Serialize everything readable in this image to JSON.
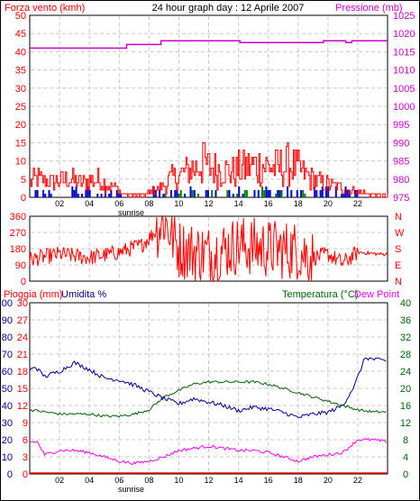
{
  "header": {
    "left_label": "Forza vento (kmh)",
    "center_label": "24 hour graph day : 12 Aprile 2007",
    "right_label": "Pressione (mb)"
  },
  "colors": {
    "wind": "#ff0000",
    "gust_overlay_blue": "#0000cc",
    "gust_overlay_green": "#008000",
    "pressure": "#cc00cc",
    "direction": "#ff0000",
    "humidity": "#000099",
    "temperature": "#006600",
    "dewpoint": "#ff00ff",
    "rain": "#ff0000",
    "grid": "#c8c8c8",
    "frame": "#000000"
  },
  "x_axis": {
    "range": [
      0,
      24
    ],
    "tick_labels": [
      "02",
      "04",
      "06",
      "08",
      "10",
      "12",
      "14",
      "16",
      "18",
      "20",
      "22"
    ],
    "tick_values": [
      2,
      4,
      6,
      8,
      10,
      12,
      14,
      16,
      18,
      20,
      22
    ],
    "sunrise_label": "sunrise",
    "sunrise_hour": 6.8
  },
  "chart_data": [
    {
      "type": "line",
      "name_panel": "wind-pressure",
      "ylabel_left": "Forza vento (kmh)",
      "ylabel_right": "Pressione (mb)",
      "y_left_range": [
        0,
        50
      ],
      "y_left_ticks": [
        0,
        5,
        10,
        15,
        20,
        25,
        30,
        35,
        40,
        45,
        50
      ],
      "y_right_range": [
        975,
        1025
      ],
      "y_right_ticks": [
        975,
        980,
        985,
        990,
        995,
        1000,
        1005,
        1010,
        1015,
        1020,
        1025
      ],
      "pressure_series": {
        "x": [
          0,
          6.5,
          6.5,
          8.8,
          8.8,
          14.1,
          14.1,
          19.7,
          19.7,
          21.2,
          21.2,
          21.6,
          21.6,
          24
        ],
        "y": [
          1016,
          1016,
          1017,
          1017,
          1018,
          1018,
          1017.5,
          1017.5,
          1018,
          1018,
          1017.5,
          1017.5,
          1018,
          1018
        ]
      },
      "wind_profile": {
        "x": [
          0,
          0.5,
          1.5,
          2.5,
          3.5,
          4.5,
          5.5,
          6.5,
          7.5,
          8.5,
          9.5,
          10.5,
          11.5,
          12.5,
          13.5,
          14.5,
          15.5,
          16.5,
          17.5,
          18.5,
          19.5,
          20.5,
          21.5,
          22.5,
          23.5
        ],
        "y": [
          4,
          5,
          4,
          5,
          4,
          5,
          3,
          0.5,
          0.5,
          2,
          5,
          7,
          9,
          8,
          7,
          8,
          9,
          8,
          9,
          6,
          4,
          3,
          2,
          1,
          0.5
        ]
      },
      "wind_peak": {
        "x": 11.6,
        "y": 15
      }
    },
    {
      "type": "line",
      "name_panel": "wind-direction",
      "y_range": [
        0,
        360
      ],
      "y_ticks": [
        0,
        90,
        180,
        270,
        360
      ],
      "right_labels": [
        "N",
        "W",
        "S",
        "E",
        "N"
      ],
      "direction_profile": {
        "x": [
          0,
          2,
          4,
          6,
          7.5,
          8.5,
          9,
          10,
          12,
          14,
          16,
          18,
          19,
          20,
          21,
          22,
          23.5
        ],
        "y": [
          120,
          150,
          130,
          160,
          200,
          280,
          340,
          180,
          150,
          200,
          180,
          170,
          130,
          150,
          100,
          160,
          150
        ]
      }
    },
    {
      "type": "line",
      "name_panel": "temp-hum",
      "legend": [
        "Pioggia (mm)",
        "Umidita %",
        "Temperatura (°C)",
        "Dew Point"
      ],
      "y_rain_range": [
        0,
        30
      ],
      "y_rain_ticks": [
        0,
        3,
        6,
        9,
        12,
        15,
        18,
        21,
        24,
        27,
        30
      ],
      "y_hum_range": [
        0,
        100
      ],
      "y_hum_ticks": [
        0,
        10,
        20,
        30,
        40,
        50,
        60,
        70,
        80,
        90,
        100
      ],
      "y_temp_range": [
        0,
        40
      ],
      "y_temp_ticks": [
        0,
        4,
        8,
        12,
        16,
        20,
        24,
        28,
        32,
        36,
        40
      ],
      "humidity": {
        "x": [
          0,
          0.3,
          1,
          2,
          3,
          4,
          5,
          6,
          7,
          8,
          9,
          10,
          11,
          12,
          13,
          14,
          15,
          16,
          17,
          18,
          19,
          20,
          21,
          21.8,
          22.5,
          23,
          24
        ],
        "y": [
          60,
          63,
          57,
          60,
          65,
          61,
          56,
          55,
          52,
          48,
          44,
          41,
          44,
          42,
          40,
          37,
          39,
          38,
          36,
          33,
          35,
          36,
          40,
          52,
          68,
          67,
          66
        ]
      },
      "temperature": {
        "x": [
          0,
          1,
          2,
          3,
          4,
          5,
          6,
          7,
          8,
          9,
          10,
          11,
          12,
          13,
          14,
          15,
          16,
          17,
          18,
          19,
          20,
          21,
          22,
          23,
          24
        ],
        "y": [
          15,
          14.5,
          14,
          14,
          14,
          13.5,
          13.5,
          14,
          15,
          18,
          19.5,
          21,
          21.5,
          21.5,
          21.5,
          21.5,
          21,
          20,
          19,
          18,
          17,
          16,
          15,
          14.5,
          14.5
        ]
      },
      "dewpoint": {
        "x": [
          0,
          0.5,
          1,
          2,
          3,
          4,
          5,
          6,
          7,
          8,
          9,
          10,
          11,
          12,
          13,
          14,
          15,
          16,
          17,
          18,
          19,
          20,
          21,
          22,
          23,
          24
        ],
        "y": [
          7.5,
          7.5,
          4.5,
          5.5,
          5.5,
          5,
          4,
          3,
          2.5,
          3,
          4,
          5.5,
          6,
          6.5,
          6,
          5.5,
          5.5,
          5,
          4,
          3,
          4,
          4.5,
          5,
          8,
          8,
          7.5
        ]
      },
      "rain": {
        "x": [
          0,
          24
        ],
        "y": [
          0,
          0
        ]
      }
    }
  ]
}
